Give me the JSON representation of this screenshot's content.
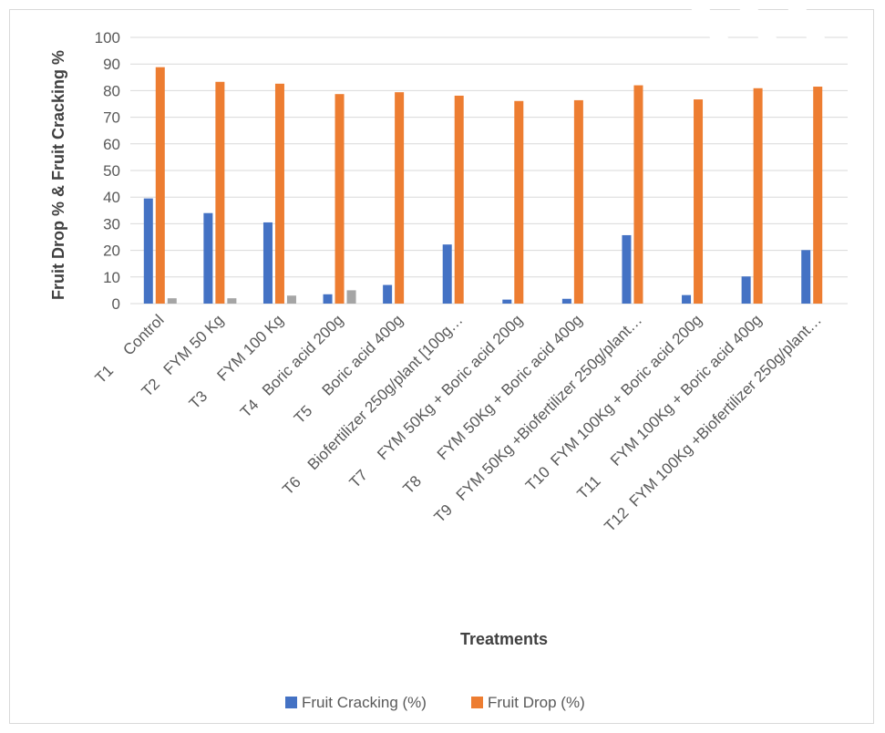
{
  "chart_data": {
    "type": "bar",
    "title": "",
    "xlabel": "Treatments",
    "ylabel": "Fruit Drop % & Fruit Cracking %",
    "ylim": [
      0,
      100
    ],
    "yticks": [
      0,
      10,
      20,
      30,
      40,
      50,
      60,
      70,
      80,
      90,
      100
    ],
    "grid": true,
    "legend_position": "bottom",
    "categories": [
      "T1     Control",
      "T2   FYM 50 Kg",
      "T3     FYM 100 Kg",
      "T4   Boric acid 200g",
      "T5     Boric acid 400g",
      "T6    Biofertilizer 250g/plant [100g…",
      "T7     FYM 50Kg + Boric acid 200g",
      "T8       FYM 50Kg + Boric acid 400g",
      "T9   FYM 50Kg +Biofertilizer 250g/plant…",
      "T10  FYM 100Kg + Boric acid 200g",
      "T11     FYM 100Kg + Boric acid 400g",
      "T12  FYM 100Kg +Biofertilizer 250g/plant…"
    ],
    "series": [
      {
        "name": "Fruit Cracking (%)",
        "color": "#4472c4",
        "values": [
          39.5,
          34,
          30.5,
          3.5,
          7,
          22.2,
          1.5,
          1.8,
          25.7,
          3.2,
          10.2,
          20.1
        ]
      },
      {
        "name": "Fruit Drop (%)",
        "color": "#ed7d31",
        "values": [
          88.8,
          83.3,
          82.6,
          78.7,
          79.4,
          78.1,
          76.1,
          76.4,
          82,
          76.7,
          80.9,
          81.5
        ]
      },
      {
        "name": "",
        "color": "#a5a5a5",
        "values": [
          2,
          2,
          3,
          5,
          null,
          null,
          null,
          null,
          null,
          null,
          null,
          null
        ]
      }
    ]
  }
}
